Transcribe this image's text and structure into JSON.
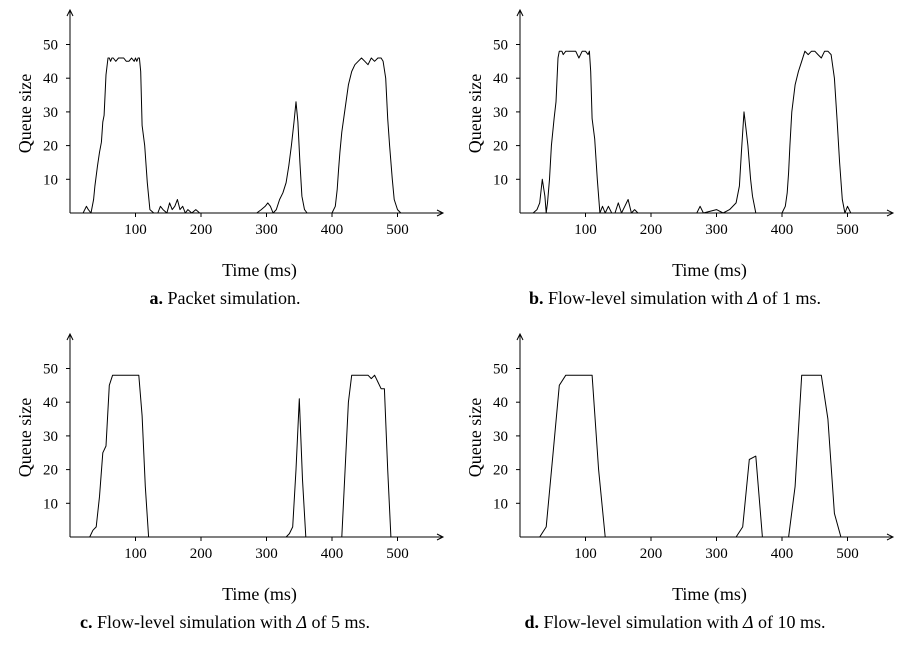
{
  "chart_data": [
    {
      "type": "line",
      "caption_letter": "a.",
      "caption_prefix": "Packet simulation.",
      "caption_symbol": "",
      "caption_suffix": "",
      "xlabel": "Time (ms)",
      "ylabel": "Queue size",
      "xlim": [
        0,
        540
      ],
      "ylim": [
        0,
        56
      ],
      "xticks": [
        100,
        200,
        300,
        400,
        500
      ],
      "yticks": [
        10,
        20,
        30,
        40,
        50
      ],
      "grid": false,
      "series": [
        {
          "x": [
            20,
            25,
            28,
            32,
            36,
            38,
            42,
            45,
            48,
            50,
            52,
            55,
            58,
            60,
            62,
            64,
            66,
            70,
            74,
            78,
            82,
            86,
            90,
            94,
            98,
            100,
            102,
            104,
            106,
            108,
            110,
            114,
            118,
            122,
            128,
            134,
            138,
            142,
            148,
            152,
            156,
            160,
            164,
            168,
            172,
            176,
            180,
            186,
            192,
            198,
            205,
            215,
            230,
            250,
            270,
            285,
            292,
            298,
            302,
            306,
            310,
            315,
            320,
            325,
            330,
            334,
            338,
            342,
            345,
            348,
            351,
            354,
            358,
            362,
            370,
            380,
            390,
            400,
            405,
            408,
            410,
            412,
            415,
            420,
            425,
            430,
            435,
            440,
            445,
            450,
            455,
            460,
            465,
            470,
            475,
            478,
            482,
            485,
            488,
            492,
            495,
            500,
            505
          ],
          "y": [
            0,
            2,
            1,
            0,
            4,
            8,
            14,
            18,
            21,
            27,
            29,
            41,
            46,
            46,
            45,
            46,
            46,
            45,
            46,
            46,
            46,
            45,
            45,
            46,
            45,
            46,
            45,
            46,
            46,
            42,
            26,
            20,
            9,
            1,
            0,
            0,
            2,
            1,
            0,
            3,
            1,
            2,
            4,
            1,
            2,
            0,
            1,
            0,
            1,
            0,
            0,
            0,
            0,
            0,
            0,
            0,
            1,
            2,
            3,
            2,
            0,
            1,
            4,
            6,
            9,
            14,
            20,
            27,
            33,
            27,
            15,
            5,
            1,
            0,
            0,
            0,
            0,
            0,
            2,
            7,
            13,
            18,
            24,
            31,
            38,
            42,
            44,
            45,
            46,
            45,
            44,
            46,
            45,
            46,
            46,
            45,
            40,
            28,
            20,
            10,
            4,
            1,
            0
          ]
        }
      ]
    },
    {
      "type": "line",
      "caption_letter": "b.",
      "caption_prefix": "Flow-level simulation with",
      "caption_symbol": "Δ",
      "caption_suffix": "of 1 ms.",
      "xlabel": "Time (ms)",
      "ylabel": "Queue size",
      "xlim": [
        0,
        540
      ],
      "ylim": [
        0,
        56
      ],
      "xticks": [
        100,
        200,
        300,
        400,
        500
      ],
      "yticks": [
        10,
        20,
        30,
        40,
        50
      ],
      "grid": false,
      "series": [
        {
          "x": [
            20,
            26,
            30,
            34,
            38,
            40,
            42,
            45,
            48,
            52,
            55,
            58,
            60,
            62,
            64,
            66,
            70,
            75,
            80,
            85,
            90,
            95,
            100,
            104,
            106,
            108,
            110,
            114,
            118,
            122,
            126,
            130,
            135,
            140,
            145,
            150,
            155,
            160,
            165,
            170,
            175,
            180,
            185,
            200,
            220,
            250,
            270,
            275,
            280,
            300,
            310,
            320,
            330,
            335,
            338,
            342,
            345,
            348,
            352,
            355,
            360,
            380,
            400,
            405,
            408,
            410,
            412,
            415,
            420,
            425,
            430,
            435,
            440,
            445,
            450,
            455,
            460,
            465,
            470,
            475,
            480,
            484,
            488,
            492,
            496,
            500,
            505
          ],
          "y": [
            0,
            1,
            3,
            10,
            5,
            0,
            3,
            10,
            20,
            28,
            33,
            46,
            48,
            48,
            48,
            47,
            48,
            48,
            48,
            48,
            46,
            48,
            48,
            47,
            48,
            42,
            28,
            22,
            10,
            0,
            2,
            0,
            2,
            0,
            0,
            3,
            0,
            2,
            4,
            0,
            1,
            0,
            0,
            0,
            0,
            0,
            0,
            2,
            0,
            1,
            0,
            1,
            3,
            8,
            18,
            30,
            25,
            20,
            10,
            5,
            0,
            0,
            0,
            2,
            6,
            12,
            20,
            30,
            38,
            42,
            45,
            48,
            47,
            48,
            48,
            47,
            46,
            48,
            48,
            47,
            40,
            28,
            15,
            4,
            0,
            2,
            0
          ]
        }
      ]
    },
    {
      "type": "line",
      "caption_letter": "c.",
      "caption_prefix": "Flow-level simulation with",
      "caption_symbol": "Δ",
      "caption_suffix": "of 5 ms.",
      "xlabel": "Time (ms)",
      "ylabel": "Queue size",
      "xlim": [
        0,
        540
      ],
      "ylim": [
        0,
        56
      ],
      "xticks": [
        100,
        200,
        300,
        400,
        500
      ],
      "yticks": [
        10,
        20,
        30,
        40,
        50
      ],
      "grid": false,
      "series": [
        {
          "x": [
            20,
            30,
            35,
            40,
            45,
            50,
            55,
            60,
            65,
            70,
            75,
            80,
            85,
            90,
            95,
            100,
            105,
            110,
            115,
            120,
            125,
            130,
            150,
            200,
            250,
            300,
            320,
            330,
            335,
            340,
            345,
            350,
            355,
            360,
            380,
            400,
            410,
            415,
            420,
            425,
            430,
            435,
            440,
            445,
            450,
            455,
            460,
            465,
            470,
            475,
            480,
            485,
            490,
            495,
            500
          ],
          "y": [
            0,
            0,
            2,
            3,
            12,
            25,
            27,
            45,
            48,
            48,
            48,
            48,
            48,
            48,
            48,
            48,
            48,
            36,
            15,
            0,
            0,
            0,
            0,
            0,
            0,
            0,
            0,
            0,
            1,
            3,
            20,
            41,
            17,
            0,
            0,
            0,
            0,
            0,
            20,
            40,
            48,
            48,
            48,
            48,
            48,
            48,
            47,
            48,
            46,
            44,
            44,
            20,
            0,
            0,
            0
          ]
        }
      ]
    },
    {
      "type": "line",
      "caption_letter": "d.",
      "caption_prefix": "Flow-level simulation with",
      "caption_symbol": "Δ",
      "caption_suffix": "of 10 ms.",
      "xlabel": "Time (ms)",
      "ylabel": "Queue size",
      "xlim": [
        0,
        540
      ],
      "ylim": [
        0,
        56
      ],
      "xticks": [
        100,
        200,
        300,
        400,
        500
      ],
      "yticks": [
        10,
        20,
        30,
        40,
        50
      ],
      "grid": false,
      "series": [
        {
          "x": [
            20,
            30,
            40,
            50,
            60,
            70,
            80,
            90,
            100,
            110,
            120,
            130,
            140,
            150,
            200,
            250,
            300,
            330,
            340,
            350,
            360,
            370,
            380,
            390,
            400,
            410,
            420,
            430,
            440,
            450,
            460,
            470,
            480,
            490,
            500
          ],
          "y": [
            0,
            0,
            3,
            24,
            45,
            48,
            48,
            48,
            48,
            48,
            20,
            0,
            0,
            0,
            0,
            0,
            0,
            0,
            3,
            23,
            24,
            0,
            0,
            0,
            0,
            0,
            15,
            48,
            48,
            48,
            48,
            35,
            7,
            0,
            0
          ]
        }
      ]
    }
  ]
}
